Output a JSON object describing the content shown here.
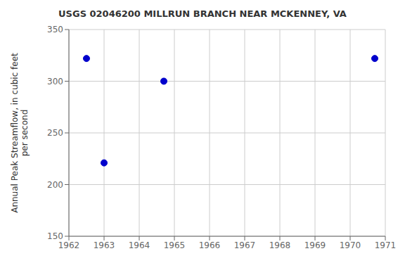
{
  "chart_data": {
    "type": "scatter",
    "title": "USGS 02046200 MILLRUN BRANCH NEAR MCKENNEY, VA",
    "ylabel": "Annual Peak Streamflow, in cubic feet\nper second",
    "x": [
      1962.5,
      1963.0,
      1964.7,
      1970.7
    ],
    "values": [
      322,
      221,
      300,
      322
    ],
    "xlim": [
      1962,
      1971
    ],
    "ylim": [
      150,
      350
    ],
    "xticks": [
      1962,
      1963,
      1964,
      1965,
      1966,
      1967,
      1968,
      1969,
      1970,
      1971
    ],
    "yticks": [
      150,
      200,
      250,
      300,
      350
    ],
    "color": "#0000cc",
    "marker": "circle",
    "grid": true
  }
}
